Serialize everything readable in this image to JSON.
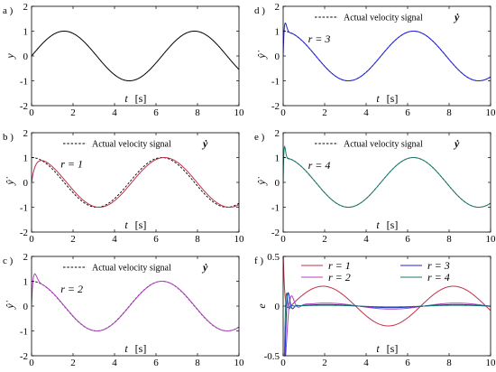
{
  "figure": {
    "background": "#ffffff"
  },
  "chart_data": [
    {
      "id": "a",
      "panel_label": "a )",
      "type": "line",
      "ylabel": "y",
      "xlabel_var": "t",
      "xlabel_unit": "[s]",
      "xlim": [
        0,
        10
      ],
      "ylim": [
        -2,
        2
      ],
      "xticks": [
        0,
        2,
        4,
        6,
        8,
        10
      ],
      "yticks": [
        -2,
        -1,
        0,
        1,
        2
      ],
      "ytick_labels": [
        "-2",
        "-1",
        "0",
        "1",
        "2"
      ],
      "grid": false,
      "legend": null,
      "r_label": null,
      "series": [
        {
          "kind": "sin",
          "color": "#000000",
          "dashed": false
        }
      ]
    },
    {
      "id": "b",
      "panel_label": "b )",
      "type": "line",
      "ylabel": "ŷ̇",
      "xlabel_var": "t",
      "xlabel_unit": "[s]",
      "xlim": [
        0,
        10
      ],
      "ylim": [
        -2,
        2
      ],
      "xticks": [
        0,
        2,
        4,
        6,
        8,
        10
      ],
      "yticks": [
        -2,
        -1,
        0,
        1,
        2
      ],
      "ytick_labels": [
        "-2",
        "-1",
        "0",
        "1",
        "2"
      ],
      "grid": false,
      "legend": {
        "text": "Actual velocity signal",
        "symbol": "ẏ",
        "placement": "top-center"
      },
      "r_label": "r = 1",
      "r_pos": [
        1.4,
        0.6
      ],
      "series": [
        {
          "kind": "cos",
          "color": "#000000",
          "dashed": true
        },
        {
          "kind": "est",
          "r": 1,
          "color": "#c0304a",
          "dashed": false
        }
      ]
    },
    {
      "id": "c",
      "panel_label": "c )",
      "type": "line",
      "ylabel": "ŷ̇",
      "xlabel_var": "t",
      "xlabel_unit": "[s]",
      "xlim": [
        0,
        10
      ],
      "ylim": [
        -2,
        2
      ],
      "xticks": [
        0,
        2,
        4,
        6,
        8,
        10
      ],
      "yticks": [
        -2,
        -1,
        0,
        1,
        2
      ],
      "ytick_labels": [
        "-2",
        "-1",
        "0",
        "1",
        "2"
      ],
      "grid": false,
      "legend": {
        "text": "Actual velocity signal",
        "symbol": "ẏ",
        "placement": "top-center"
      },
      "r_label": "r = 2",
      "r_pos": [
        1.4,
        0.55
      ],
      "series": [
        {
          "kind": "cos",
          "color": "#000000",
          "dashed": true
        },
        {
          "kind": "est",
          "r": 2,
          "color": "#b040c0",
          "dashed": false
        }
      ]
    },
    {
      "id": "d",
      "panel_label": "d )",
      "type": "line",
      "ylabel": "ŷ̇",
      "xlabel_var": "t",
      "xlabel_unit": "[s]",
      "xlim": [
        0,
        10
      ],
      "ylim": [
        -2,
        2
      ],
      "xticks": [
        0,
        2,
        4,
        6,
        8,
        10
      ],
      "yticks": [
        -2,
        -1,
        0,
        1,
        2
      ],
      "ytick_labels": [
        "-2",
        "-1",
        "0",
        "1",
        "2"
      ],
      "grid": false,
      "legend": {
        "text": "Actual velocity signal",
        "symbol": "ẏ",
        "placement": "top-center"
      },
      "r_label": "r = 3",
      "r_pos": [
        1.2,
        0.55
      ],
      "series": [
        {
          "kind": "cos",
          "color": "#000000",
          "dashed": true
        },
        {
          "kind": "est",
          "r": 3,
          "color": "#2020e0",
          "dashed": false
        }
      ]
    },
    {
      "id": "e",
      "panel_label": "e )",
      "type": "line",
      "ylabel": "ŷ̇",
      "xlabel_var": "t",
      "xlabel_unit": "[s]",
      "xlim": [
        0,
        10
      ],
      "ylim": [
        -2,
        2
      ],
      "xticks": [
        0,
        2,
        4,
        6,
        8,
        10
      ],
      "yticks": [
        -2,
        -1,
        0,
        1,
        2
      ],
      "ytick_labels": [
        "-2",
        "-1",
        "0",
        "1",
        "2"
      ],
      "grid": false,
      "legend": {
        "text": "Actual velocity signal",
        "symbol": "ẏ",
        "placement": "top-center"
      },
      "r_label": "r = 4",
      "r_pos": [
        1.2,
        0.55
      ],
      "series": [
        {
          "kind": "cos",
          "color": "#000000",
          "dashed": true
        },
        {
          "kind": "est",
          "r": 4,
          "color": "#1a7a6a",
          "dashed": false
        }
      ]
    },
    {
      "id": "f",
      "panel_label": "f )",
      "type": "line",
      "ylabel": "e",
      "xlabel_var": "t",
      "xlabel_unit": "[s]",
      "xlim": [
        0,
        10
      ],
      "ylim": [
        -0.5,
        0.5
      ],
      "xticks": [
        0,
        2,
        4,
        6,
        8,
        10
      ],
      "yticks": [
        -0.5,
        0,
        0.5
      ],
      "ytick_labels": [
        "-0.5",
        "0",
        "0.5"
      ],
      "grid": false,
      "legend": {
        "placement": "top",
        "entries": [
          {
            "label": "r = 1",
            "color": "#c0304a"
          },
          {
            "label": "r = 3",
            "color": "#2020e0"
          },
          {
            "label": "r = 2",
            "color": "#b040c0"
          },
          {
            "label": "r = 4",
            "color": "#1a7a6a"
          }
        ]
      },
      "r_label": null,
      "series": [
        {
          "kind": "err",
          "r": 1,
          "color": "#c0304a",
          "dashed": false
        },
        {
          "kind": "err",
          "r": 2,
          "color": "#b040c0",
          "dashed": false
        },
        {
          "kind": "err",
          "r": 3,
          "color": "#2020e0",
          "dashed": false
        },
        {
          "kind": "err",
          "r": 4,
          "color": "#1a7a6a",
          "dashed": false
        }
      ]
    }
  ]
}
